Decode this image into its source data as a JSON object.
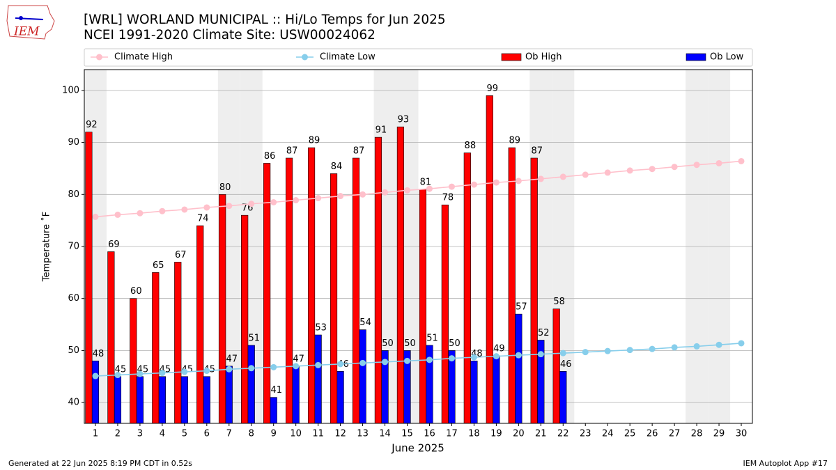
{
  "chart_data": {
    "type": "bar",
    "title": "[WRL] WORLAND MUNICIPAL :: Hi/Lo Temps for Jun 2025",
    "subtitle": "NCEI 1991-2020 Climate Site: USW00024062",
    "logo_text": "IEM",
    "ylabel": "Temperature ˚F",
    "xlabel": "June 2025",
    "footer_left": "Generated at 22 Jun 2025 8:19 PM CDT in 0.52s",
    "footer_right": "IEM Autoplot App #17",
    "categories": [
      "1",
      "2",
      "3",
      "4",
      "5",
      "6",
      "7",
      "8",
      "9",
      "10",
      "11",
      "12",
      "13",
      "14",
      "15",
      "16",
      "17",
      "18",
      "19",
      "20",
      "21",
      "22",
      "23",
      "24",
      "25",
      "26",
      "27",
      "28",
      "29",
      "30"
    ],
    "shaded_days": [
      1,
      7,
      8,
      14,
      15,
      21,
      22,
      28,
      29
    ],
    "shade_color": "#eeeeee",
    "ylim": [
      36,
      104
    ],
    "yticks": [
      40,
      50,
      60,
      70,
      80,
      90,
      100
    ],
    "grid": true,
    "legend": "top",
    "series": [
      {
        "name": "Climate High",
        "type": "line",
        "color": "#ffc0cb",
        "values": [
          75.7,
          76.1,
          76.4,
          76.8,
          77.1,
          77.5,
          77.8,
          78.2,
          78.5,
          78.9,
          79.3,
          79.7,
          80.0,
          80.4,
          80.8,
          81.1,
          81.5,
          81.9,
          82.3,
          82.6,
          83.0,
          83.4,
          83.8,
          84.2,
          84.6,
          84.9,
          85.3,
          85.7,
          86.0,
          86.4
        ]
      },
      {
        "name": "Climate Low",
        "type": "line",
        "color": "#87ceeb",
        "values": [
          45.1,
          45.3,
          45.5,
          45.7,
          45.9,
          46.1,
          46.4,
          46.6,
          46.8,
          47.0,
          47.2,
          47.4,
          47.6,
          47.8,
          48.0,
          48.2,
          48.5,
          48.7,
          48.9,
          49.1,
          49.3,
          49.5,
          49.7,
          49.9,
          50.1,
          50.3,
          50.6,
          50.8,
          51.1,
          51.4
        ]
      },
      {
        "name": "Ob High",
        "type": "bar",
        "color": "#ff0000",
        "values": [
          92,
          69,
          60,
          65,
          67,
          74,
          80,
          76,
          86,
          87,
          89,
          84,
          87,
          91,
          93,
          81,
          78,
          88,
          99,
          89,
          87,
          58,
          null,
          null,
          null,
          null,
          null,
          null,
          null,
          null
        ]
      },
      {
        "name": "Ob Low",
        "type": "bar",
        "color": "#0000ff",
        "values": [
          48,
          45,
          45,
          45,
          45,
          45,
          47,
          51,
          41,
          47,
          53,
          46,
          54,
          50,
          50,
          51,
          50,
          48,
          49,
          57,
          52,
          46,
          null,
          null,
          null,
          null,
          null,
          null,
          null,
          null
        ]
      }
    ]
  }
}
